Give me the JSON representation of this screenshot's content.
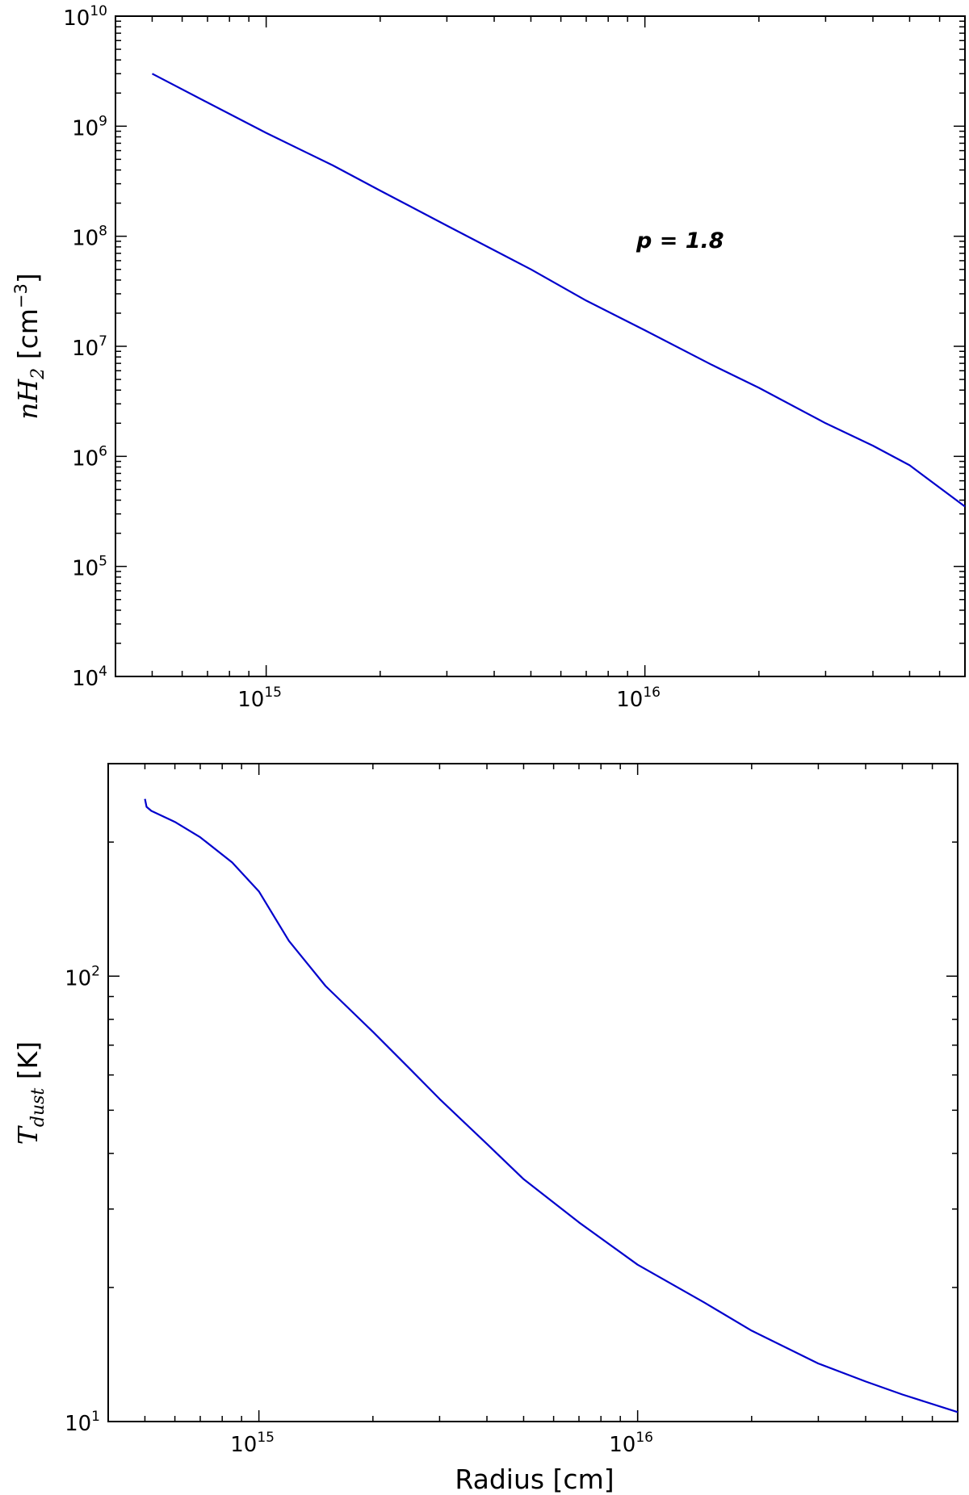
{
  "chart_data": [
    {
      "type": "line",
      "xscale": "log",
      "yscale": "log",
      "xlim": [
        400000000000000.0,
        7e+16
      ],
      "ylim": [
        10000.0,
        10000000000.0
      ],
      "xticks": [
        {
          "base": "10",
          "exp": "15",
          "value": 1000000000000000.0
        },
        {
          "base": "10",
          "exp": "16",
          "value": 1e+16
        }
      ],
      "yticks": [
        {
          "base": "10",
          "exp": "4",
          "value": 10000.0
        },
        {
          "base": "10",
          "exp": "5",
          "value": 100000.0
        },
        {
          "base": "10",
          "exp": "6",
          "value": 1000000.0
        },
        {
          "base": "10",
          "exp": "7",
          "value": 10000000.0
        },
        {
          "base": "10",
          "exp": "8",
          "value": 100000000.0
        },
        {
          "base": "10",
          "exp": "9",
          "value": 1000000000.0
        },
        {
          "base": "10",
          "exp": "10",
          "value": 10000000000.0
        }
      ],
      "ylabel": {
        "math": "nH",
        "sub": "2",
        "text": " [cm",
        "sup": "−3",
        "close": "]"
      },
      "xlabel": "",
      "annotation": "p = 1.8",
      "color": "#0000cc",
      "series": [
        {
          "x": [
            500000000000000.0,
            700000000000000.0,
            1000000000000000.0,
            1500000000000000.0,
            2000000000000000.0,
            3000000000000000.0,
            5000000000000000.0,
            7000000000000000.0,
            1e+16,
            1.5e+16,
            2e+16,
            3e+16,
            4e+16,
            5e+16,
            7e+16
          ],
          "y": [
            3000000000.0,
            1640000000.0,
            870000000.0,
            440000000.0,
            260000000.0,
            125000000.0,
            50000000.0,
            26000000.0,
            14000000.0,
            6800000.0,
            4200000.0,
            2000000.0,
            1250000.0,
            830000.0,
            350000.0
          ]
        }
      ]
    },
    {
      "type": "line",
      "xscale": "log",
      "yscale": "log",
      "xlim": [
        400000000000000.0,
        7e+16
      ],
      "ylim": [
        10,
        300
      ],
      "xticks": [
        {
          "base": "10",
          "exp": "15",
          "value": 1000000000000000.0
        },
        {
          "base": "10",
          "exp": "16",
          "value": 1e+16
        }
      ],
      "yticks": [
        {
          "base": "10",
          "exp": "1",
          "value": 10
        },
        {
          "base": "10",
          "exp": "2",
          "value": 100
        }
      ],
      "ylabel": {
        "math": "T",
        "sub": "dust",
        "text": " [K]"
      },
      "xlabel": "Radius [cm]",
      "color": "#0000cc",
      "series": [
        {
          "x": [
            500000000000000.0,
            505000000000000.0,
            520000000000000.0,
            600000000000000.0,
            700000000000000.0,
            850000000000000.0,
            1000000000000000.0,
            1200000000000000.0,
            1500000000000000.0,
            2000000000000000.0,
            2500000000000000.0,
            3000000000000000.0,
            4000000000000000.0,
            5000000000000000.0,
            7000000000000000.0,
            1e+16,
            1.5e+16,
            2e+16,
            3e+16,
            4e+16,
            5e+16,
            7e+16
          ],
          "y": [
            250,
            240,
            235,
            222,
            205,
            180,
            155,
            120,
            95,
            75,
            62,
            53,
            42,
            35,
            28,
            22.5,
            18.5,
            16,
            13.5,
            12.3,
            11.5,
            10.5
          ]
        }
      ]
    }
  ]
}
